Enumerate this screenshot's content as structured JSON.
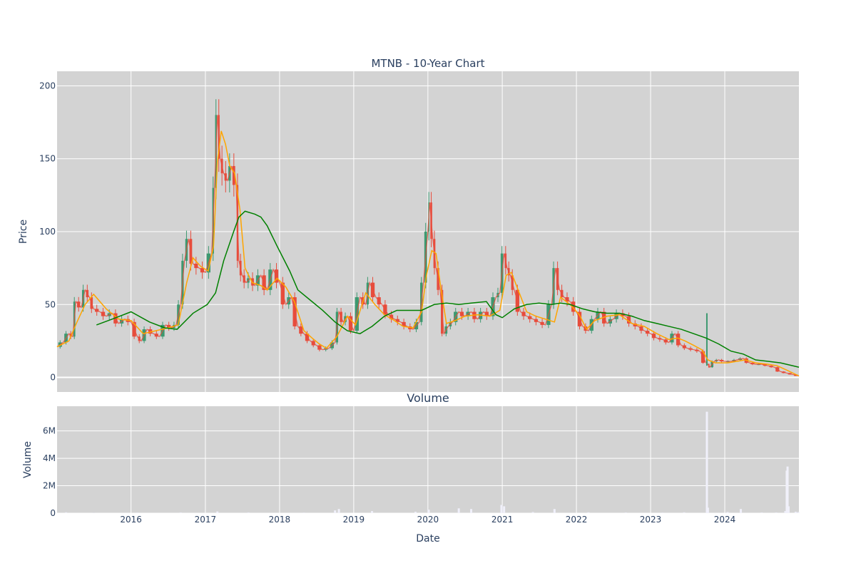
{
  "colors": {
    "plot_bg": "#d3d3d3",
    "grid": "#ffffff",
    "candle_up": "#3d9970",
    "candle_down": "#e74c3c",
    "ma_short": "#ffa500",
    "ma_long": "#008000",
    "volume_bar": "#e8e8f4",
    "text": "#2a3f5f"
  },
  "chart_data": [
    {
      "type": "line",
      "title": "MTNB - 10-Year Chart",
      "xlabel": "",
      "ylabel": "Price",
      "xlim": [
        "2015-01-02",
        "2024-12-31"
      ],
      "ylim": [
        -10,
        210
      ],
      "y_ticks": [
        0,
        50,
        100,
        150,
        200
      ],
      "y_tick_labels": [
        "0",
        "50",
        "100",
        "150",
        "200"
      ],
      "grid": true,
      "legend": "none",
      "series": [
        {
          "role": "close",
          "x": [
            "2015-01-02",
            "2015-02-01",
            "2015-03-01",
            "2015-03-20",
            "2015-04-05",
            "2015-05-01",
            "2015-05-20",
            "2015-06-10",
            "2015-07-01",
            "2015-08-01",
            "2015-09-01",
            "2015-10-01",
            "2015-11-01",
            "2015-12-01",
            "2016-01-01",
            "2016-02-01",
            "2016-02-20",
            "2016-03-20",
            "2016-04-20",
            "2016-05-20",
            "2016-06-20",
            "2016-07-20",
            "2016-08-10",
            "2016-09-01",
            "2016-09-20",
            "2016-10-10",
            "2016-11-01",
            "2016-12-01",
            "2017-01-01",
            "2017-02-01",
            "2017-02-15",
            "2017-03-01",
            "2017-03-15",
            "2017-04-01",
            "2017-04-20",
            "2017-05-10",
            "2017-06-01",
            "2017-06-15",
            "2017-07-01",
            "2017-07-20",
            "2017-08-10",
            "2017-09-01",
            "2017-10-01",
            "2017-11-01",
            "2017-12-01",
            "2018-01-01",
            "2018-02-01",
            "2018-03-01",
            "2018-04-01",
            "2018-05-01",
            "2018-06-01",
            "2018-07-01",
            "2018-08-01",
            "2018-09-01",
            "2018-10-01",
            "2018-10-20",
            "2018-11-10",
            "2018-12-01",
            "2019-01-01",
            "2019-02-01",
            "2019-03-01",
            "2019-03-20",
            "2019-04-20",
            "2019-05-20",
            "2019-06-20",
            "2019-07-20",
            "2019-08-20",
            "2019-09-20",
            "2019-10-20",
            "2019-11-20",
            "2019-12-10",
            "2020-01-01",
            "2020-01-10",
            "2020-01-25",
            "2020-02-10",
            "2020-03-01",
            "2020-03-20",
            "2020-04-10",
            "2020-05-01",
            "2020-06-01",
            "2020-07-01",
            "2020-08-01",
            "2020-09-01",
            "2020-10-01",
            "2020-11-01",
            "2020-12-01",
            "2020-12-20",
            "2021-01-10",
            "2021-01-25",
            "2021-02-10",
            "2021-03-01",
            "2021-04-01",
            "2021-05-01",
            "2021-06-01",
            "2021-07-01",
            "2021-08-01",
            "2021-09-01",
            "2021-09-20",
            "2021-10-10",
            "2021-11-01",
            "2021-12-01",
            "2022-01-01",
            "2022-02-01",
            "2022-03-01",
            "2022-04-01",
            "2022-05-01",
            "2022-06-01",
            "2022-07-01",
            "2022-08-01",
            "2022-09-01",
            "2022-10-01",
            "2022-11-01",
            "2022-12-01",
            "2023-01-01",
            "2023-02-01",
            "2023-03-01",
            "2023-04-01",
            "2023-05-01",
            "2023-06-01",
            "2023-07-01",
            "2023-08-01",
            "2023-09-01",
            "2023-10-01",
            "2023-10-10",
            "2023-10-20",
            "2023-11-10",
            "2023-12-01",
            "2024-01-01",
            "2024-02-01",
            "2024-03-01",
            "2024-04-01",
            "2024-05-01",
            "2024-06-01",
            "2024-07-01",
            "2024-08-01",
            "2024-09-01",
            "2024-10-01",
            "2024-11-01",
            "2024-12-01",
            "2024-12-31"
          ],
          "y": [
            21,
            24,
            30,
            28,
            52,
            48,
            60,
            55,
            47,
            45,
            42,
            44,
            37,
            40,
            38,
            28,
            25,
            33,
            30,
            28,
            36,
            34,
            36,
            50,
            80,
            95,
            78,
            75,
            72,
            85,
            130,
            180,
            150,
            140,
            135,
            145,
            132,
            80,
            70,
            65,
            68,
            63,
            70,
            60,
            74,
            65,
            50,
            55,
            35,
            30,
            25,
            22,
            19,
            20,
            24,
            45,
            38,
            42,
            32,
            55,
            50,
            65,
            55,
            50,
            43,
            40,
            38,
            35,
            33,
            38,
            65,
            100,
            120,
            95,
            75,
            60,
            30,
            35,
            38,
            45,
            42,
            45,
            40,
            45,
            42,
            55,
            58,
            85,
            75,
            70,
            60,
            45,
            42,
            40,
            38,
            36,
            50,
            75,
            60,
            55,
            52,
            45,
            35,
            32,
            40,
            45,
            37,
            40,
            44,
            42,
            37,
            35,
            32,
            30,
            27,
            26,
            24,
            30,
            22,
            20,
            19,
            18,
            10,
            9,
            7,
            11,
            12,
            11,
            11,
            12,
            13,
            10,
            9,
            9,
            8,
            7,
            4,
            3,
            2,
            1
          ]
        },
        {
          "role": "ma_short",
          "x": [
            "2015-01-02",
            "2015-03-01",
            "2015-04-10",
            "2015-05-20",
            "2015-07-01",
            "2015-09-01",
            "2015-11-01",
            "2016-01-01",
            "2016-03-01",
            "2016-05-01",
            "2016-07-01",
            "2016-08-20",
            "2016-10-01",
            "2016-11-01",
            "2016-12-10",
            "2017-01-15",
            "2017-02-10",
            "2017-03-01",
            "2017-03-20",
            "2017-04-10",
            "2017-05-01",
            "2017-05-25",
            "2017-06-20",
            "2017-07-15",
            "2017-08-20",
            "2017-10-01",
            "2017-11-01",
            "2017-12-20",
            "2018-02-01",
            "2018-03-15",
            "2018-05-01",
            "2018-06-10",
            "2018-07-15",
            "2018-08-20",
            "2018-10-10",
            "2018-12-01",
            "2019-01-10",
            "2019-03-01",
            "2019-04-15",
            "2019-06-01",
            "2019-07-20",
            "2019-09-01",
            "2019-10-20",
            "2019-12-01",
            "2019-12-25",
            "2020-01-20",
            "2020-02-10",
            "2020-03-01",
            "2020-04-01",
            "2020-05-15",
            "2020-07-01",
            "2020-09-01",
            "2020-11-01",
            "2020-12-20",
            "2021-01-20",
            "2021-02-15",
            "2021-03-20",
            "2021-05-01",
            "2021-06-15",
            "2021-08-01",
            "2021-09-15",
            "2021-10-15",
            "2021-12-01",
            "2022-01-15",
            "2022-02-20",
            "2022-04-01",
            "2022-06-01",
            "2022-08-01",
            "2022-10-01",
            "2022-12-01",
            "2023-02-01",
            "2023-04-01",
            "2023-05-15",
            "2023-06-20",
            "2023-08-01",
            "2023-09-10",
            "2023-10-10",
            "2023-11-15",
            "2024-01-15",
            "2024-03-01",
            "2024-04-10",
            "2024-06-01",
            "2024-08-01",
            "2024-09-15",
            "2024-11-01",
            "2024-12-31"
          ],
          "y": [
            21,
            25,
            38,
            50,
            57,
            47,
            40,
            39,
            30,
            32,
            34,
            36,
            65,
            82,
            76,
            73,
            90,
            148,
            169,
            160,
            145,
            140,
            115,
            75,
            65,
            63,
            60,
            68,
            62,
            52,
            32,
            27,
            23,
            20,
            28,
            42,
            36,
            58,
            50,
            43,
            39,
            35,
            34,
            45,
            70,
            87,
            85,
            65,
            37,
            39,
            42,
            43,
            42,
            46,
            70,
            72,
            60,
            45,
            42,
            40,
            38,
            55,
            50,
            43,
            33,
            39,
            42,
            43,
            37,
            35,
            30,
            26,
            27,
            25,
            22,
            19,
            12,
            10,
            10,
            11,
            12,
            10,
            9,
            8,
            5,
            1
          ]
        },
        {
          "role": "ma_long",
          "x": [
            "2015-07-15",
            "2015-10-01",
            "2016-01-01",
            "2016-04-01",
            "2016-06-15",
            "2016-08-15",
            "2016-11-01",
            "2017-01-10",
            "2017-02-20",
            "2017-04-01",
            "2017-05-20",
            "2017-06-15",
            "2017-07-15",
            "2017-09-01",
            "2017-10-01",
            "2017-11-01",
            "2017-12-20",
            "2018-02-20",
            "2018-04-01",
            "2018-06-01",
            "2018-08-01",
            "2018-10-01",
            "2018-12-01",
            "2019-02-01",
            "2019-04-01",
            "2019-06-01",
            "2019-08-01",
            "2019-10-01",
            "2019-12-01",
            "2020-02-01",
            "2020-04-01",
            "2020-06-01",
            "2020-08-01",
            "2020-10-15",
            "2020-12-01",
            "2021-01-01",
            "2021-03-01",
            "2021-05-01",
            "2021-07-01",
            "2021-09-01",
            "2021-10-15",
            "2021-12-01",
            "2022-02-01",
            "2022-04-01",
            "2022-06-01",
            "2022-08-01",
            "2022-10-01",
            "2022-12-01",
            "2023-02-01",
            "2023-04-01",
            "2023-06-01",
            "2023-08-01",
            "2023-10-01",
            "2023-12-01",
            "2024-02-01",
            "2024-04-01",
            "2024-06-01",
            "2024-08-01",
            "2024-10-01",
            "2024-12-31"
          ],
          "y": [
            36,
            40,
            45,
            38,
            34,
            33,
            44,
            50,
            58,
            80,
            100,
            110,
            114,
            112,
            110,
            104,
            90,
            73,
            60,
            53,
            46,
            38,
            32,
            30,
            35,
            42,
            46,
            46,
            46,
            50,
            51,
            50,
            51,
            52,
            43,
            41,
            47,
            50,
            51,
            50,
            51,
            50,
            47,
            45,
            44,
            44,
            42,
            39,
            37,
            35,
            33,
            30,
            27,
            23,
            18,
            16,
            12,
            11,
            10,
            7
          ]
        }
      ],
      "annotations": [
        {
          "x": "2023-10-05",
          "y": 44,
          "label": ""
        }
      ]
    },
    {
      "type": "bar",
      "title": "Volume",
      "xlabel": "Date",
      "ylabel": "Volume",
      "xlim": [
        "2015-01-02",
        "2024-12-31"
      ],
      "ylim": [
        0,
        7800000
      ],
      "y_ticks": [
        0,
        2000000,
        4000000,
        6000000
      ],
      "y_tick_labels": [
        "0",
        "2M",
        "4M",
        "6M"
      ],
      "x_ticks": [
        "2016-01-01",
        "2017-01-01",
        "2018-01-01",
        "2019-01-01",
        "2020-01-01",
        "2021-01-01",
        "2022-01-01",
        "2023-01-01",
        "2024-01-01"
      ],
      "x_tick_labels": [
        "2016",
        "2017",
        "2018",
        "2019",
        "2020",
        "2021",
        "2022",
        "2023",
        "2024"
      ],
      "grid": true,
      "x": [
        "2015-02-15",
        "2015-07-01",
        "2016-02-01",
        "2016-09-01",
        "2017-03-01",
        "2017-08-01",
        "2018-05-01",
        "2018-10-01",
        "2018-10-20",
        "2019-04-01",
        "2019-11-01",
        "2020-01-05",
        "2020-06-01",
        "2020-08-01",
        "2020-12-28",
        "2021-01-10",
        "2021-06-01",
        "2021-09-15",
        "2022-03-01",
        "2022-09-01",
        "2023-03-01",
        "2023-06-15",
        "2023-10-05",
        "2023-10-10",
        "2024-01-15",
        "2024-03-20",
        "2024-07-01",
        "2024-09-10",
        "2024-10-25",
        "2024-11-01",
        "2024-11-05",
        "2024-11-10",
        "2024-12-15",
        "2024-12-28"
      ],
      "values": [
        60000,
        30000,
        40000,
        50000,
        120000,
        50000,
        40000,
        200000,
        300000,
        150000,
        100000,
        250000,
        350000,
        300000,
        600000,
        500000,
        80000,
        300000,
        60000,
        50000,
        40000,
        60000,
        7400000,
        400000,
        80000,
        300000,
        50000,
        50000,
        150000,
        3100000,
        3400000,
        500000,
        100000,
        80000
      ]
    }
  ]
}
